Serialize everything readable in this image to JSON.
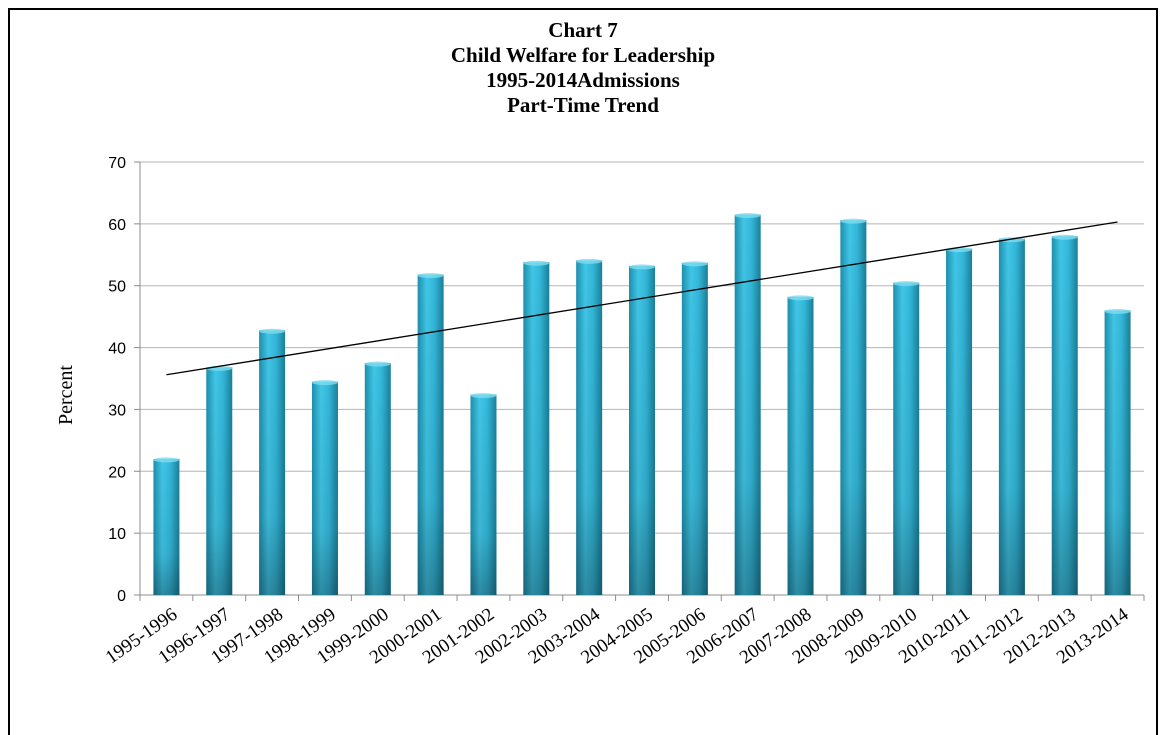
{
  "chart_data": {
    "type": "bar",
    "title_lines": [
      "Chart 7",
      "Child Welfare for Leadership",
      "1995-2014Admissions",
      "Part-Time Trend"
    ],
    "xlabel": "",
    "ylabel": "Percent",
    "ylim": [
      0,
      70
    ],
    "yticks": [
      0,
      10,
      20,
      30,
      40,
      50,
      60,
      70
    ],
    "grid": true,
    "legend": "none",
    "categories": [
      "1995-1996",
      "1996-1997",
      "1997-1998",
      "1998-1999",
      "1999-2000",
      "2000-2001",
      "2001-2002",
      "2002-2003",
      "2003-2004",
      "2004-2005",
      "2005-2006",
      "2006-2007",
      "2007-2008",
      "2008-2009",
      "2009-2010",
      "2010-2011",
      "2011-2012",
      "2012-2013",
      "2013-2014"
    ],
    "values": [
      22,
      36.8,
      42.8,
      34.5,
      37.5,
      51.8,
      32.4,
      53.8,
      54.1,
      53.2,
      53.7,
      61.5,
      48.2,
      60.6,
      50.5,
      56,
      57.6,
      58,
      46
    ],
    "trendline": {
      "type": "linear",
      "start": 35.6,
      "end": 60.3
    },
    "colors": {
      "bar": "#2fb2d3",
      "bar_dark": "#1a7f99",
      "trend": "#000000",
      "grid": "#b5b5b5"
    }
  }
}
